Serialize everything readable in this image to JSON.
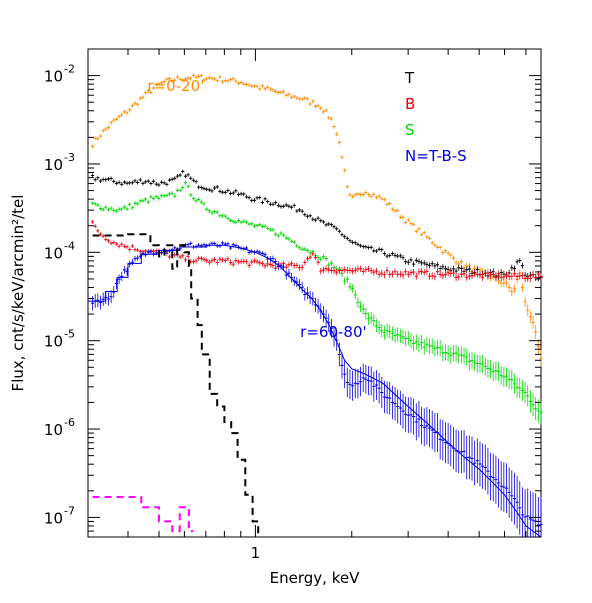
{
  "chart_data": {
    "type": "line",
    "xlabel": "Energy, keV",
    "ylabel": "Flux, cnt/s/keV/arcmin²/tel",
    "x_scale": "log",
    "y_scale": "log",
    "xlim": [
      0.3,
      7.8
    ],
    "ylim": [
      6e-08,
      0.02
    ],
    "x_tick_labels": [
      {
        "value": 1,
        "label": "1"
      }
    ],
    "y_tick_labels": [
      {
        "value": 0.01,
        "base": "10",
        "exp": "-2"
      },
      {
        "value": 0.001,
        "base": "10",
        "exp": "-3"
      },
      {
        "value": 0.0001,
        "base": "10",
        "exp": "-4"
      },
      {
        "value": 1e-05,
        "base": "10",
        "exp": "-5"
      },
      {
        "value": 1e-06,
        "base": "10",
        "exp": "-6"
      },
      {
        "value": 1e-07,
        "base": "10",
        "exp": "-7"
      }
    ],
    "legend": {
      "placement": "top-right",
      "entries": [
        {
          "label": "T",
          "color": "#000000"
        },
        {
          "label": "B",
          "color": "#e8000b"
        },
        {
          "label": "S",
          "color": "#00d800"
        },
        {
          "label": "N=T-B-S",
          "color": "#0000e0"
        }
      ]
    },
    "annotations": [
      {
        "text": "r=0-20'",
        "color": "#ff8c00",
        "x": 0.46,
        "y": 0.0067
      },
      {
        "text": "r=60-80'",
        "color": "#0000e0",
        "x": 1.38,
        "y": 1.1e-05
      }
    ],
    "series": [
      {
        "name": "r=0-20'",
        "color": "#ff8c00",
        "style": "points",
        "points": [
          [
            0.31,
            0.0017
          ],
          [
            0.33,
            0.0022
          ],
          [
            0.36,
            0.003
          ],
          [
            0.4,
            0.004
          ],
          [
            0.44,
            0.0055
          ],
          [
            0.48,
            0.0072
          ],
          [
            0.52,
            0.0085
          ],
          [
            0.57,
            0.0092
          ],
          [
            0.62,
            0.0095
          ],
          [
            0.7,
            0.0095
          ],
          [
            0.8,
            0.009
          ],
          [
            0.9,
            0.0085
          ],
          [
            1.0,
            0.0075
          ],
          [
            1.1,
            0.007
          ],
          [
            1.2,
            0.0063
          ],
          [
            1.4,
            0.0055
          ],
          [
            1.6,
            0.0045
          ],
          [
            1.75,
            0.003
          ],
          [
            1.85,
            0.0015
          ],
          [
            1.9,
            0.0008
          ],
          [
            1.95,
            0.00045
          ],
          [
            2.0,
            0.0004
          ],
          [
            2.2,
            0.0005
          ],
          [
            2.5,
            0.0004
          ],
          [
            3.0,
            0.00022
          ],
          [
            3.5,
            0.00014
          ],
          [
            4.0,
            9.5e-05
          ],
          [
            4.5,
            7e-05
          ],
          [
            5.0,
            6e-05
          ],
          [
            5.5,
            5.2e-05
          ],
          [
            6.0,
            4.5e-05
          ],
          [
            6.4,
            3.5e-05
          ],
          [
            6.7,
            6e-05
          ],
          [
            6.9,
            3e-05
          ],
          [
            7.2,
            2e-05
          ],
          [
            7.5,
            1.2e-05
          ],
          [
            7.8,
            6e-06
          ]
        ]
      },
      {
        "name": "T",
        "color": "#000000",
        "style": "points",
        "points": [
          [
            0.31,
            0.0007
          ],
          [
            0.35,
            0.00065
          ],
          [
            0.4,
            0.0006
          ],
          [
            0.45,
            0.00065
          ],
          [
            0.5,
            0.0006
          ],
          [
            0.56,
            0.00065
          ],
          [
            0.6,
            0.0008
          ],
          [
            0.65,
            0.0006
          ],
          [
            0.7,
            0.00055
          ],
          [
            0.8,
            0.0005
          ],
          [
            0.9,
            0.00045
          ],
          [
            1.0,
            0.0004
          ],
          [
            1.2,
            0.00035
          ],
          [
            1.4,
            0.0003
          ],
          [
            1.6,
            0.00022
          ],
          [
            1.8,
            0.00018
          ],
          [
            2.0,
            0.00013
          ],
          [
            2.2,
            0.00011
          ],
          [
            2.5,
            0.0001
          ],
          [
            3.0,
            8e-05
          ],
          [
            4.0,
            6.5e-05
          ],
          [
            5.0,
            6e-05
          ],
          [
            6.0,
            5.5e-05
          ],
          [
            6.7,
            8e-05
          ],
          [
            7.0,
            5.5e-05
          ],
          [
            7.8,
            5e-05
          ]
        ]
      },
      {
        "name": "S",
        "color": "#00d800",
        "style": "points",
        "points": [
          [
            0.31,
            0.00035
          ],
          [
            0.34,
            0.00032
          ],
          [
            0.38,
            0.0003
          ],
          [
            0.42,
            0.00035
          ],
          [
            0.47,
            0.0004
          ],
          [
            0.52,
            0.00042
          ],
          [
            0.56,
            0.00045
          ],
          [
            0.6,
            0.0006
          ],
          [
            0.65,
            0.0004
          ],
          [
            0.7,
            0.00032
          ],
          [
            0.8,
            0.00026
          ],
          [
            0.9,
            0.00022
          ],
          [
            1.0,
            0.0002
          ],
          [
            1.1,
            0.00018
          ],
          [
            1.2,
            0.00016
          ],
          [
            1.4,
            0.000115
          ],
          [
            1.6,
            9e-05
          ],
          [
            1.8,
            6.5e-05
          ],
          [
            2.0,
            4e-05
          ],
          [
            2.2,
            2e-05
          ],
          [
            2.5,
            1.3e-05
          ],
          [
            3.0,
            1e-05
          ],
          [
            3.5,
            8.5e-06
          ],
          [
            4.0,
            7.5e-06
          ],
          [
            5.0,
            5.5e-06
          ],
          [
            6.0,
            4e-06
          ],
          [
            7.0,
            2.5e-06
          ],
          [
            7.8,
            1.5e-06
          ]
        ]
      },
      {
        "name": "B",
        "color": "#e8000b",
        "style": "points",
        "points": [
          [
            0.31,
            0.00021
          ],
          [
            0.33,
            0.00016
          ],
          [
            0.36,
            0.00013
          ],
          [
            0.4,
            0.000115
          ],
          [
            0.45,
            0.000105
          ],
          [
            0.5,
            0.0001
          ],
          [
            0.6,
            8.5e-05
          ],
          [
            0.7,
            8e-05
          ],
          [
            0.8,
            8e-05
          ],
          [
            1.0,
            7.5e-05
          ],
          [
            1.2,
            7e-05
          ],
          [
            1.4,
            7e-05
          ],
          [
            1.5,
            0.0001
          ],
          [
            1.6,
            6.5e-05
          ],
          [
            2.0,
            6.2e-05
          ],
          [
            3.0,
            5.8e-05
          ],
          [
            4.0,
            5.6e-05
          ],
          [
            5.0,
            5.5e-05
          ],
          [
            6.0,
            5.4e-05
          ],
          [
            7.8,
            5.3e-05
          ]
        ]
      },
      {
        "name": "N=T-B-S",
        "color": "#0000e0",
        "style": "points",
        "points": [
          [
            0.31,
            2.8e-05
          ],
          [
            0.35,
            3e-05
          ],
          [
            0.38,
            5.5e-05
          ],
          [
            0.42,
            8e-05
          ],
          [
            0.46,
            0.0001
          ],
          [
            0.5,
            0.000105
          ],
          [
            0.56,
            0.00011
          ],
          [
            0.62,
            0.00012
          ],
          [
            0.7,
            0.00012
          ],
          [
            0.8,
            0.00012
          ],
          [
            0.9,
            0.00011
          ],
          [
            1.0,
            0.0001
          ],
          [
            1.1,
            9e-05
          ],
          [
            1.2,
            7e-05
          ],
          [
            1.3,
            5e-05
          ],
          [
            1.4,
            3.8e-05
          ],
          [
            1.5,
            3e-05
          ],
          [
            1.6,
            2.3e-05
          ],
          [
            1.7,
            1.6e-05
          ],
          [
            1.8,
            1e-05
          ],
          [
            1.85,
            5.5e-06
          ],
          [
            1.9,
            4e-06
          ],
          [
            2.0,
            3e-06
          ],
          [
            2.2,
            4e-06
          ],
          [
            2.5,
            2.5e-06
          ],
          [
            3.0,
            1.5e-06
          ],
          [
            3.5,
            1e-06
          ],
          [
            4.0,
            7e-07
          ],
          [
            5.0,
            4e-07
          ],
          [
            6.0,
            2.2e-07
          ],
          [
            6.5,
            1.5e-07
          ],
          [
            7.0,
            1e-07
          ],
          [
            7.8,
            8e-08
          ]
        ]
      },
      {
        "name": "r=60-80' model",
        "color": "#0000e0",
        "style": "step",
        "points": [
          [
            0.3,
            2.8e-05
          ],
          [
            0.34,
            2.8e-05
          ],
          [
            0.34,
            3.6e-05
          ],
          [
            0.37,
            3.6e-05
          ],
          [
            0.37,
            5.2e-05
          ],
          [
            0.4,
            5.2e-05
          ],
          [
            0.4,
            7.5e-05
          ],
          [
            0.44,
            7.5e-05
          ],
          [
            0.44,
            9.5e-05
          ],
          [
            0.5,
            9.5e-05
          ],
          [
            0.5,
            0.000105
          ],
          [
            0.58,
            0.000105
          ],
          [
            0.58,
            0.000115
          ],
          [
            0.7,
            0.000115
          ],
          [
            0.7,
            0.00012
          ],
          [
            0.8,
            0.00012
          ],
          [
            0.9,
            0.000112
          ],
          [
            1.0,
            0.0001
          ],
          [
            1.1,
            8.5e-05
          ],
          [
            1.2,
            6.8e-05
          ],
          [
            1.3,
            5e-05
          ],
          [
            1.4,
            3.8e-05
          ],
          [
            1.5,
            3e-05
          ],
          [
            1.6,
            2.2e-05
          ],
          [
            1.7,
            1.5e-05
          ],
          [
            1.8,
            9.5e-06
          ],
          [
            1.9,
            6e-06
          ],
          [
            2.0,
            4.8e-06
          ],
          [
            2.2,
            4.2e-06
          ],
          [
            2.5,
            3.3e-06
          ],
          [
            3.0,
            1.8e-06
          ],
          [
            3.5,
            1.1e-06
          ],
          [
            4.0,
            7e-07
          ],
          [
            4.5,
            4.8e-07
          ],
          [
            5.0,
            3.5e-07
          ],
          [
            5.5,
            2.5e-07
          ],
          [
            6.0,
            1.8e-07
          ],
          [
            6.5,
            1.2e-07
          ],
          [
            7.0,
            8e-08
          ],
          [
            7.8,
            4e-08
          ]
        ]
      },
      {
        "name": "dashed-black",
        "color": "#000000",
        "style": "dashed",
        "points": [
          [
            0.31,
            0.000155
          ],
          [
            0.4,
            0.000155
          ],
          [
            0.4,
            0.00016
          ],
          [
            0.47,
            0.00016
          ],
          [
            0.47,
            0.00012
          ],
          [
            0.5,
            0.00012
          ],
          [
            0.5,
            9e-05
          ],
          [
            0.52,
            9e-05
          ],
          [
            0.52,
            0.00012
          ],
          [
            0.55,
            0.00012
          ],
          [
            0.55,
            6.5e-05
          ],
          [
            0.57,
            6.5e-05
          ],
          [
            0.57,
            0.00012
          ],
          [
            0.6,
            0.00012
          ],
          [
            0.6,
            0.0001
          ],
          [
            0.62,
            0.0001
          ],
          [
            0.62,
            7e-05
          ],
          [
            0.63,
            7e-05
          ],
          [
            0.63,
            3e-05
          ],
          [
            0.66,
            3e-05
          ],
          [
            0.66,
            1.5e-05
          ],
          [
            0.68,
            1.5e-05
          ],
          [
            0.68,
            7e-06
          ],
          [
            0.72,
            7e-06
          ],
          [
            0.72,
            2.5e-06
          ],
          [
            0.76,
            2.5e-06
          ],
          [
            0.76,
            1.8e-06
          ],
          [
            0.8,
            1.8e-06
          ],
          [
            0.8,
            1.2e-06
          ],
          [
            0.84,
            1.2e-06
          ],
          [
            0.84,
            9e-07
          ],
          [
            0.88,
            9e-07
          ],
          [
            0.88,
            4.5e-07
          ],
          [
            0.93,
            4.5e-07
          ],
          [
            0.93,
            1.8e-07
          ],
          [
            0.98,
            1.8e-07
          ],
          [
            0.98,
            9e-08
          ],
          [
            1.02,
            9e-08
          ],
          [
            1.02,
            6.5e-08
          ],
          [
            1.04,
            6.5e-08
          ]
        ]
      },
      {
        "name": "dashed-magenta",
        "color": "#ff00ff",
        "style": "dashed",
        "points": [
          [
            0.31,
            1.7e-07
          ],
          [
            0.44,
            1.7e-07
          ],
          [
            0.44,
            1.3e-07
          ],
          [
            0.5,
            1.3e-07
          ],
          [
            0.5,
            9e-08
          ],
          [
            0.55,
            9e-08
          ],
          [
            0.55,
            7e-08
          ],
          [
            0.58,
            7e-08
          ],
          [
            0.58,
            1.3e-07
          ],
          [
            0.62,
            1.3e-07
          ],
          [
            0.62,
            7e-08
          ],
          [
            0.64,
            7e-08
          ]
        ]
      }
    ]
  }
}
